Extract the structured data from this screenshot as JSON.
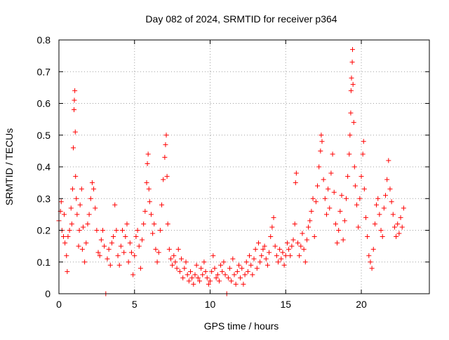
{
  "chart_data": {
    "type": "scatter",
    "title": "Day 082 of 2024, SRMTID for receiver p364",
    "xlabel": "GPS time / hours",
    "ylabel": "SRMTID / TECUs",
    "xlim": [
      0,
      24.5
    ],
    "ylim": [
      0,
      0.8
    ],
    "x_ticks": [
      0,
      5,
      10,
      15,
      20
    ],
    "y_ticks": [
      0,
      0.1,
      0.2,
      0.3,
      0.4,
      0.5,
      0.6,
      0.7,
      0.8
    ],
    "x_tick_labels": [
      "0",
      "5",
      "10",
      "15",
      "20"
    ],
    "y_tick_labels": [
      "0",
      "0.1",
      "0.2",
      "0.3",
      "0.4",
      "0.5",
      "0.6",
      "0.7",
      "0.8"
    ],
    "grid": true,
    "marker": "+",
    "series_color": "#ff0000",
    "series": [
      {
        "name": "SRMTID",
        "points": [
          [
            0.0,
            0.23
          ],
          [
            0.1,
            0.26
          ],
          [
            0.15,
            0.29
          ],
          [
            0.2,
            0.2
          ],
          [
            0.3,
            0.18
          ],
          [
            0.35,
            0.25
          ],
          [
            0.4,
            0.16
          ],
          [
            0.5,
            0.12
          ],
          [
            0.55,
            0.07
          ],
          [
            0.6,
            0.18
          ],
          [
            0.7,
            0.2
          ],
          [
            0.8,
            0.27
          ],
          [
            0.85,
            0.22
          ],
          [
            0.9,
            0.33
          ],
          [
            0.95,
            0.46
          ],
          [
            1.0,
            0.58
          ],
          [
            1.02,
            0.61
          ],
          [
            1.05,
            0.64
          ],
          [
            1.08,
            0.51
          ],
          [
            1.1,
            0.37
          ],
          [
            1.15,
            0.3
          ],
          [
            1.2,
            0.25
          ],
          [
            1.3,
            0.15
          ],
          [
            1.35,
            0.2
          ],
          [
            1.4,
            0.28
          ],
          [
            1.5,
            0.33
          ],
          [
            1.55,
            0.14
          ],
          [
            1.6,
            0.21
          ],
          [
            1.7,
            0.1
          ],
          [
            1.8,
            0.16
          ],
          [
            1.9,
            0.22
          ],
          [
            2.0,
            0.25
          ],
          [
            2.1,
            0.3
          ],
          [
            2.2,
            0.35
          ],
          [
            2.3,
            0.33
          ],
          [
            2.4,
            0.27
          ],
          [
            2.5,
            0.2
          ],
          [
            2.6,
            0.13
          ],
          [
            2.7,
            0.12
          ],
          [
            2.8,
            0.17
          ],
          [
            2.9,
            0.2
          ],
          [
            3.0,
            0.15
          ],
          [
            3.1,
            0.0
          ],
          [
            3.2,
            0.11
          ],
          [
            3.3,
            0.14
          ],
          [
            3.4,
            0.09
          ],
          [
            3.5,
            0.16
          ],
          [
            3.6,
            0.18
          ],
          [
            3.7,
            0.28
          ],
          [
            3.8,
            0.2
          ],
          [
            3.9,
            0.12
          ],
          [
            4.0,
            0.09
          ],
          [
            4.1,
            0.15
          ],
          [
            4.2,
            0.2
          ],
          [
            4.3,
            0.13
          ],
          [
            4.4,
            0.18
          ],
          [
            4.5,
            0.22
          ],
          [
            4.6,
            0.1
          ],
          [
            4.7,
            0.16
          ],
          [
            4.8,
            0.13
          ],
          [
            4.9,
            0.06
          ],
          [
            5.0,
            0.12
          ],
          [
            5.1,
            0.18
          ],
          [
            5.2,
            0.2
          ],
          [
            5.3,
            0.15
          ],
          [
            5.4,
            0.08
          ],
          [
            5.5,
            0.17
          ],
          [
            5.6,
            0.22
          ],
          [
            5.7,
            0.26
          ],
          [
            5.8,
            0.35
          ],
          [
            5.85,
            0.41
          ],
          [
            5.9,
            0.44
          ],
          [
            5.95,
            0.33
          ],
          [
            6.0,
            0.29
          ],
          [
            6.1,
            0.25
          ],
          [
            6.2,
            0.19
          ],
          [
            6.3,
            0.22
          ],
          [
            6.4,
            0.14
          ],
          [
            6.5,
            0.1
          ],
          [
            6.6,
            0.13
          ],
          [
            6.7,
            0.2
          ],
          [
            6.8,
            0.28
          ],
          [
            6.9,
            0.36
          ],
          [
            7.0,
            0.43
          ],
          [
            7.05,
            0.47
          ],
          [
            7.1,
            0.5
          ],
          [
            7.15,
            0.37
          ],
          [
            7.2,
            0.22
          ],
          [
            7.3,
            0.14
          ],
          [
            7.4,
            0.11
          ],
          [
            7.5,
            0.09
          ],
          [
            7.6,
            0.12
          ],
          [
            7.7,
            0.1
          ],
          [
            7.8,
            0.08
          ],
          [
            7.9,
            0.14
          ],
          [
            8.0,
            0.07
          ],
          [
            8.1,
            0.11
          ],
          [
            8.2,
            0.05
          ],
          [
            8.3,
            0.08
          ],
          [
            8.4,
            0.1
          ],
          [
            8.5,
            0.06
          ],
          [
            8.6,
            0.04
          ],
          [
            8.7,
            0.07
          ],
          [
            8.8,
            0.05
          ],
          [
            8.9,
            0.03
          ],
          [
            9.0,
            0.06
          ],
          [
            9.1,
            0.09
          ],
          [
            9.2,
            0.05
          ],
          [
            9.3,
            0.04
          ],
          [
            9.4,
            0.08
          ],
          [
            9.5,
            0.06
          ],
          [
            9.6,
            0.1
          ],
          [
            9.7,
            0.07
          ],
          [
            9.8,
            0.05
          ],
          [
            9.9,
            0.03
          ],
          [
            10.0,
            0.04
          ],
          [
            10.1,
            0.07
          ],
          [
            10.2,
            0.12
          ],
          [
            10.3,
            0.08
          ],
          [
            10.4,
            0.05
          ],
          [
            10.5,
            0.06
          ],
          [
            10.6,
            0.04
          ],
          [
            10.7,
            0.09
          ],
          [
            10.8,
            0.07
          ],
          [
            10.9,
            0.1
          ],
          [
            11.0,
            0.06
          ],
          [
            11.1,
            0.0
          ],
          [
            11.2,
            0.05
          ],
          [
            11.3,
            0.08
          ],
          [
            11.4,
            0.04
          ],
          [
            11.5,
            0.11
          ],
          [
            11.6,
            0.06
          ],
          [
            11.7,
            0.03
          ],
          [
            11.8,
            0.07
          ],
          [
            11.9,
            0.09
          ],
          [
            12.0,
            0.05
          ],
          [
            12.1,
            0.08
          ],
          [
            12.2,
            0.03
          ],
          [
            12.3,
            0.06
          ],
          [
            12.4,
            0.1
          ],
          [
            12.5,
            0.07
          ],
          [
            12.6,
            0.12
          ],
          [
            12.7,
            0.09
          ],
          [
            12.8,
            0.06
          ],
          [
            12.9,
            0.11
          ],
          [
            13.0,
            0.14
          ],
          [
            13.1,
            0.08
          ],
          [
            13.2,
            0.16
          ],
          [
            13.3,
            0.1
          ],
          [
            13.4,
            0.12
          ],
          [
            13.5,
            0.14
          ],
          [
            13.6,
            0.15
          ],
          [
            13.7,
            0.11
          ],
          [
            13.8,
            0.09
          ],
          [
            13.9,
            0.13
          ],
          [
            14.0,
            0.18
          ],
          [
            14.1,
            0.21
          ],
          [
            14.2,
            0.24
          ],
          [
            14.3,
            0.15
          ],
          [
            14.4,
            0.12
          ],
          [
            14.5,
            0.1
          ],
          [
            14.6,
            0.14
          ],
          [
            14.7,
            0.11
          ],
          [
            14.8,
            0.13
          ],
          [
            14.9,
            0.09
          ],
          [
            15.0,
            0.12
          ],
          [
            15.1,
            0.16
          ],
          [
            15.2,
            0.14
          ],
          [
            15.3,
            0.12
          ],
          [
            15.4,
            0.15
          ],
          [
            15.5,
            0.17
          ],
          [
            15.6,
            0.22
          ],
          [
            15.65,
            0.35
          ],
          [
            15.7,
            0.38
          ],
          [
            15.8,
            0.16
          ],
          [
            15.9,
            0.12
          ],
          [
            16.0,
            0.15
          ],
          [
            16.1,
            0.19
          ],
          [
            16.2,
            0.14
          ],
          [
            16.3,
            0.1
          ],
          [
            16.4,
            0.17
          ],
          [
            16.5,
            0.21
          ],
          [
            16.6,
            0.23
          ],
          [
            16.7,
            0.26
          ],
          [
            16.8,
            0.3
          ],
          [
            16.9,
            0.18
          ],
          [
            17.0,
            0.29
          ],
          [
            17.1,
            0.34
          ],
          [
            17.2,
            0.4
          ],
          [
            17.3,
            0.45
          ],
          [
            17.35,
            0.5
          ],
          [
            17.4,
            0.48
          ],
          [
            17.5,
            0.36
          ],
          [
            17.6,
            0.3
          ],
          [
            17.7,
            0.25
          ],
          [
            17.8,
            0.33
          ],
          [
            17.9,
            0.27
          ],
          [
            18.0,
            0.38
          ],
          [
            18.1,
            0.44
          ],
          [
            18.2,
            0.32
          ],
          [
            18.3,
            0.22
          ],
          [
            18.4,
            0.16
          ],
          [
            18.5,
            0.2
          ],
          [
            18.6,
            0.26
          ],
          [
            18.7,
            0.31
          ],
          [
            18.8,
            0.17
          ],
          [
            18.9,
            0.23
          ],
          [
            19.0,
            0.3
          ],
          [
            19.1,
            0.37
          ],
          [
            19.2,
            0.44
          ],
          [
            19.25,
            0.5
          ],
          [
            19.3,
            0.57
          ],
          [
            19.32,
            0.64
          ],
          [
            19.35,
            0.68
          ],
          [
            19.4,
            0.73
          ],
          [
            19.42,
            0.77
          ],
          [
            19.45,
            0.66
          ],
          [
            19.5,
            0.54
          ],
          [
            19.55,
            0.4
          ],
          [
            19.6,
            0.34
          ],
          [
            19.7,
            0.28
          ],
          [
            19.8,
            0.21
          ],
          [
            19.9,
            0.3
          ],
          [
            20.0,
            0.37
          ],
          [
            20.1,
            0.44
          ],
          [
            20.15,
            0.48
          ],
          [
            20.2,
            0.33
          ],
          [
            20.3,
            0.24
          ],
          [
            20.4,
            0.18
          ],
          [
            20.5,
            0.12
          ],
          [
            20.6,
            0.1
          ],
          [
            20.7,
            0.08
          ],
          [
            20.8,
            0.14
          ],
          [
            20.9,
            0.22
          ],
          [
            21.0,
            0.28
          ],
          [
            21.1,
            0.3
          ],
          [
            21.2,
            0.25
          ],
          [
            21.3,
            0.2
          ],
          [
            21.4,
            0.18
          ],
          [
            21.5,
            0.27
          ],
          [
            21.6,
            0.31
          ],
          [
            21.7,
            0.36
          ],
          [
            21.8,
            0.42
          ],
          [
            21.9,
            0.33
          ],
          [
            22.0,
            0.29
          ],
          [
            22.1,
            0.25
          ],
          [
            22.2,
            0.21
          ],
          [
            22.3,
            0.18
          ],
          [
            22.4,
            0.22
          ],
          [
            22.5,
            0.19
          ],
          [
            22.6,
            0.24
          ],
          [
            22.7,
            0.21
          ],
          [
            22.8,
            0.27
          ]
        ]
      }
    ]
  }
}
